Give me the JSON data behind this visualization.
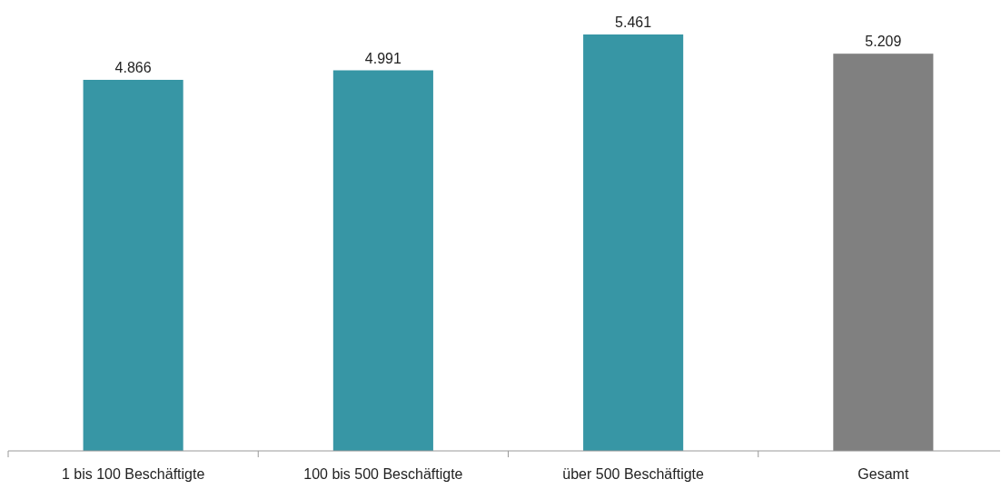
{
  "chart_data": {
    "type": "bar",
    "categories": [
      "1 bis 100 Beschäftigte",
      "100 bis 500 Beschäftigte",
      "über 500 Beschäftigte",
      "Gesamt"
    ],
    "values": [
      4866,
      4991,
      5461,
      5209
    ],
    "value_labels": [
      "4.866",
      "4.991",
      "5.461",
      "5.209"
    ],
    "colors": [
      "#3796a5",
      "#3796a5",
      "#3796a5",
      "#808080"
    ],
    "tick_labels": "x"
  }
}
